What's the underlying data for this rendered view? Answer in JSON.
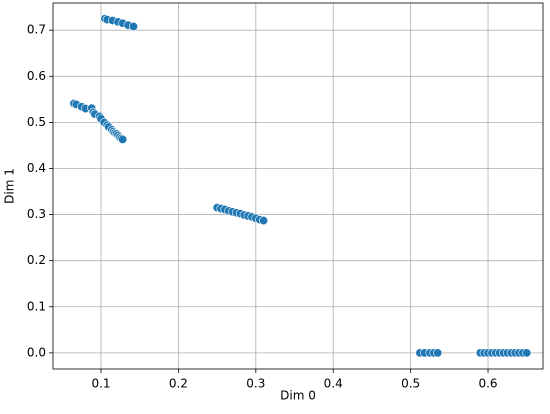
{
  "chart_data": {
    "type": "scatter",
    "xlabel": "Dim 0",
    "ylabel": "Dim 1",
    "color": "#1f77b4",
    "grid": true,
    "xlim": [
      0.038,
      0.671
    ],
    "ylim": [
      -0.035,
      0.759
    ],
    "xticks": [
      0.1,
      0.2,
      0.3,
      0.4,
      0.5,
      0.6
    ],
    "yticks": [
      {
        "value": 0,
        "label": "0.0"
      },
      0.1,
      0.2,
      0.3,
      0.4,
      0.5,
      0.6,
      0.7
    ],
    "x": [
      0.105,
      0.108,
      0.115,
      0.122,
      0.128,
      0.135,
      0.142,
      0.065,
      0.068,
      0.075,
      0.08,
      0.088,
      0.09,
      0.092,
      0.098,
      0.1,
      0.104,
      0.108,
      0.11,
      0.114,
      0.116,
      0.118,
      0.12,
      0.122,
      0.124,
      0.126,
      0.128,
      0.25,
      0.255,
      0.26,
      0.265,
      0.27,
      0.275,
      0.28,
      0.285,
      0.29,
      0.295,
      0.3,
      0.305,
      0.31,
      0.512,
      0.518,
      0.525,
      0.53,
      0.535,
      0.59,
      0.595,
      0.6,
      0.605,
      0.61,
      0.615,
      0.62,
      0.625,
      0.63,
      0.635,
      0.64,
      0.645,
      0.65
    ],
    "y": [
      0.725,
      0.723,
      0.721,
      0.718,
      0.715,
      0.711,
      0.708,
      0.541,
      0.539,
      0.534,
      0.53,
      0.531,
      0.522,
      0.518,
      0.513,
      0.508,
      0.5,
      0.494,
      0.49,
      0.484,
      0.48,
      0.477,
      0.475,
      0.472,
      0.468,
      0.465,
      0.463,
      0.315,
      0.313,
      0.311,
      0.308,
      0.306,
      0.304,
      0.302,
      0.299,
      0.297,
      0.295,
      0.292,
      0.289,
      0.287,
      0,
      0,
      0,
      0,
      0,
      0,
      0,
      0,
      0,
      0,
      0,
      0,
      0,
      0,
      0,
      0,
      0,
      0
    ]
  }
}
